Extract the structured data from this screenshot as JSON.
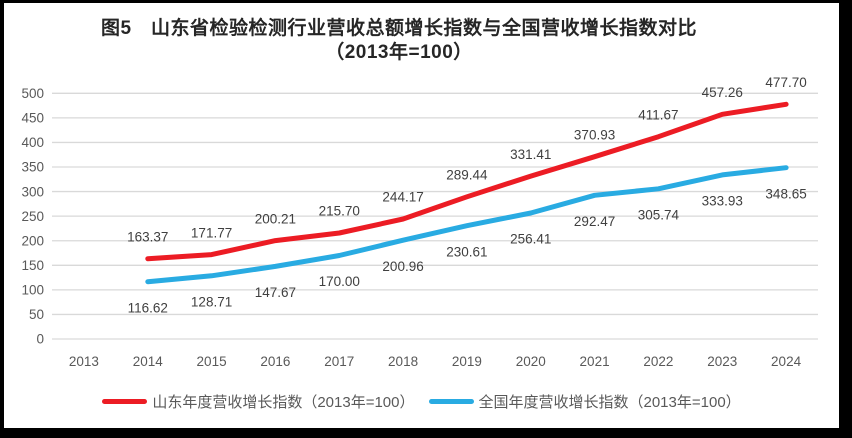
{
  "title": {
    "line1": "图5　山东省检验检测行业营收总额增长指数与全国营收增长指数对比",
    "line2": "（2013年=100）"
  },
  "chart_data": {
    "type": "line",
    "categories": [
      "2013",
      "2014",
      "2015",
      "2016",
      "2017",
      "2018",
      "2019",
      "2020",
      "2021",
      "2022",
      "2023",
      "2024"
    ],
    "series": [
      {
        "id": "shandong",
        "name": "山东年度营收增长指数（2013年=100）",
        "color": "#ec1c24",
        "label_position": "above",
        "values": [
          null,
          163.37,
          171.77,
          200.21,
          215.7,
          244.17,
          289.44,
          331.41,
          370.93,
          411.67,
          457.26,
          477.7
        ]
      },
      {
        "id": "national",
        "name": "全国年度营收增长指数（2013年=100）",
        "color": "#29abe2",
        "label_position": "below",
        "values": [
          null,
          116.62,
          128.71,
          147.67,
          170.0,
          200.96,
          230.61,
          256.41,
          292.47,
          305.74,
          333.93,
          348.65
        ]
      }
    ],
    "y_ticks": [
      0,
      50,
      100,
      150,
      200,
      250,
      300,
      350,
      400,
      450,
      500
    ],
    "ylim": [
      0,
      500
    ],
    "grid": true,
    "data_labels": true,
    "label_decimals": 2,
    "legend_position": "bottom"
  },
  "colors": {
    "gridline": "#d9d9d9",
    "axis_label": "#595959",
    "data_label": "#404040",
    "background": "#ffffff",
    "frame_border": "#000000"
  }
}
